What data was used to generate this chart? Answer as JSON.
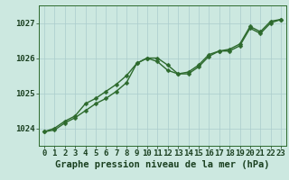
{
  "line1_y": [
    1023.9,
    1024.0,
    1024.2,
    1024.35,
    1024.7,
    1024.85,
    1025.05,
    1025.25,
    1025.5,
    1025.85,
    1026.0,
    1026.0,
    1025.8,
    1025.55,
    1025.6,
    1025.8,
    1026.1,
    1026.2,
    1026.25,
    1026.4,
    1026.9,
    1026.75,
    1027.05,
    1027.1
  ],
  "line2_y": [
    1023.9,
    1023.95,
    1024.15,
    1024.3,
    1024.5,
    1024.7,
    1024.85,
    1025.05,
    1025.3,
    1025.85,
    1026.0,
    1025.9,
    1025.65,
    1025.55,
    1025.55,
    1025.75,
    1026.05,
    1026.2,
    1026.2,
    1026.35,
    1026.85,
    1026.7,
    1027.0,
    1027.1
  ],
  "x": [
    0,
    1,
    2,
    3,
    4,
    5,
    6,
    7,
    8,
    9,
    10,
    11,
    12,
    13,
    14,
    15,
    16,
    17,
    18,
    19,
    20,
    21,
    22,
    23
  ],
  "ylim": [
    1023.5,
    1027.5
  ],
  "yticks": [
    1024,
    1025,
    1026,
    1027
  ],
  "xticks": [
    0,
    1,
    2,
    3,
    4,
    5,
    6,
    7,
    8,
    9,
    10,
    11,
    12,
    13,
    14,
    15,
    16,
    17,
    18,
    19,
    20,
    21,
    22,
    23
  ],
  "xlabel": "Graphe pression niveau de la mer (hPa)",
  "bg_color": "#cce8e0",
  "grid_color": "#aacccc",
  "line_color": "#2d6a2d",
  "text_color": "#1a4020",
  "tick_fontsize": 6.5,
  "xlabel_fontsize": 7.5,
  "line_width": 1.0,
  "marker_size": 2.5
}
